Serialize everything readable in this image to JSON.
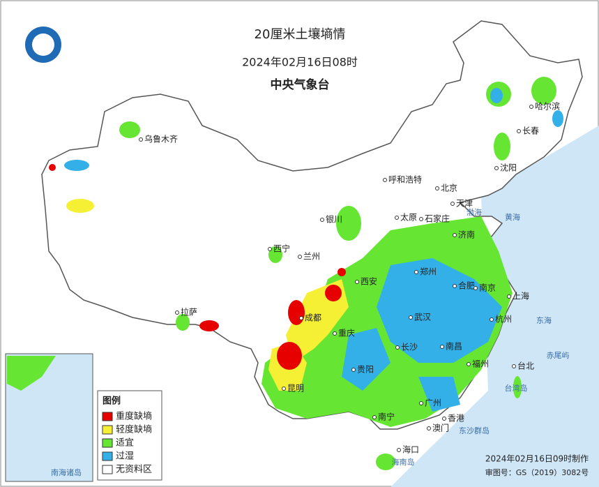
{
  "header": {
    "title": "20厘米土壤墒情",
    "date": "2024年02月16日08时",
    "org": "中央气象台"
  },
  "legend": {
    "title": "图例",
    "items": [
      {
        "label": "重度缺墒",
        "color": "#e60000"
      },
      {
        "label": "轻度缺墒",
        "color": "#f5f033"
      },
      {
        "label": "适宜",
        "color": "#66e633"
      },
      {
        "label": "过湿",
        "color": "#33b0e8"
      },
      {
        "label": "无资料区",
        "color": "#ffffff"
      }
    ]
  },
  "cities": [
    "乌鲁木齐",
    "哈尔滨",
    "长春",
    "沈阳",
    "呼和浩特",
    "北京",
    "天津",
    "石家庄",
    "太原",
    "银川",
    "济南",
    "西宁",
    "兰州",
    "郑州",
    "西安",
    "合肥",
    "南京",
    "上海",
    "杭州",
    "武汉",
    "成都",
    "重庆",
    "拉萨",
    "长沙",
    "南昌",
    "贵阳",
    "福州",
    "台北",
    "昆明",
    "广州",
    "南宁",
    "香港",
    "澳门",
    "海口"
  ],
  "places": [
    "台湾岛",
    "海南岛",
    "东沙群岛",
    "赤尾屿",
    "黄海",
    "东海",
    "渤海",
    "南海诸岛"
  ],
  "footer": {
    "made": "2024年02月16日09时制作",
    "review": "审图号：GS（2019）3082号"
  }
}
